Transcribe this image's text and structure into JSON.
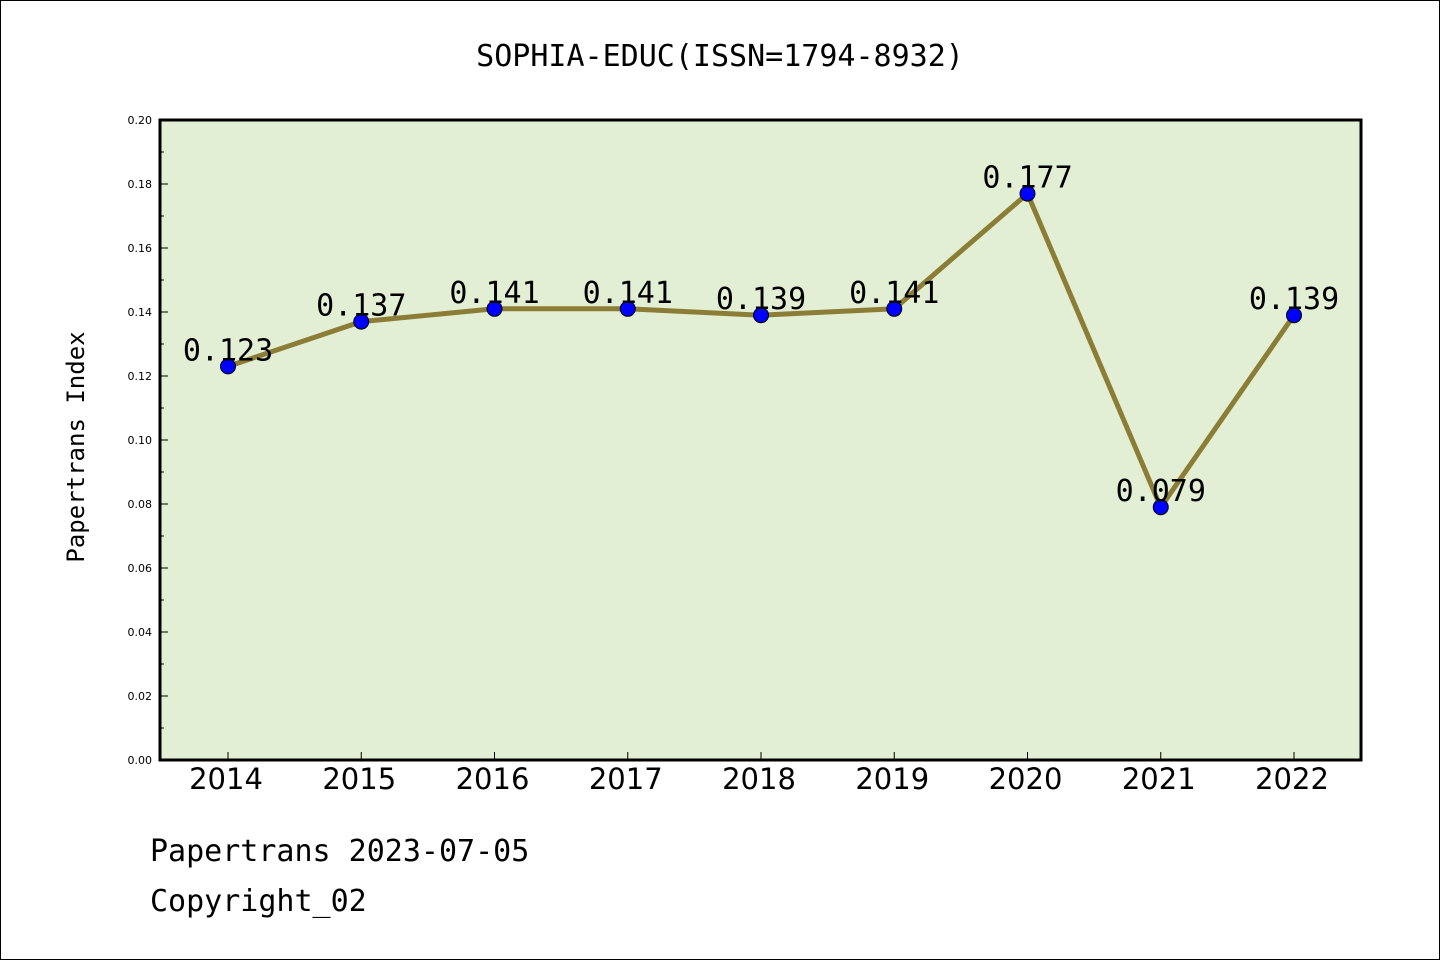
{
  "chart_data": {
    "type": "line",
    "title": "SOPHIA-EDUC(ISSN=1794-8932)",
    "xlabel": "",
    "ylabel": "Papertrans Index",
    "categories": [
      "2014",
      "2015",
      "2016",
      "2017",
      "2018",
      "2019",
      "2020",
      "2021",
      "2022"
    ],
    "series": [
      {
        "values": [
          0.123,
          0.137,
          0.141,
          0.141,
          0.139,
          0.141,
          0.177,
          0.079,
          0.139
        ],
        "labels": [
          "0.123",
          "0.137",
          "0.141",
          "0.141",
          "0.139",
          "0.141",
          "0.177",
          "0.079",
          "0.139"
        ]
      }
    ],
    "ylim": [
      0,
      0.2
    ],
    "yticks": [
      "0.00",
      "0.02",
      "0.04",
      "0.06",
      "0.08",
      "0.10",
      "0.12",
      "0.14",
      "0.16",
      "0.18",
      "0.20"
    ],
    "grid": false,
    "legend": "none",
    "colors": {
      "plot_background": "#e2efd4",
      "line": "#8b7d35",
      "marker": "#0000ff"
    }
  },
  "footer": {
    "line1": "Papertrans 2023-07-05",
    "line2": "Copyright_02"
  }
}
